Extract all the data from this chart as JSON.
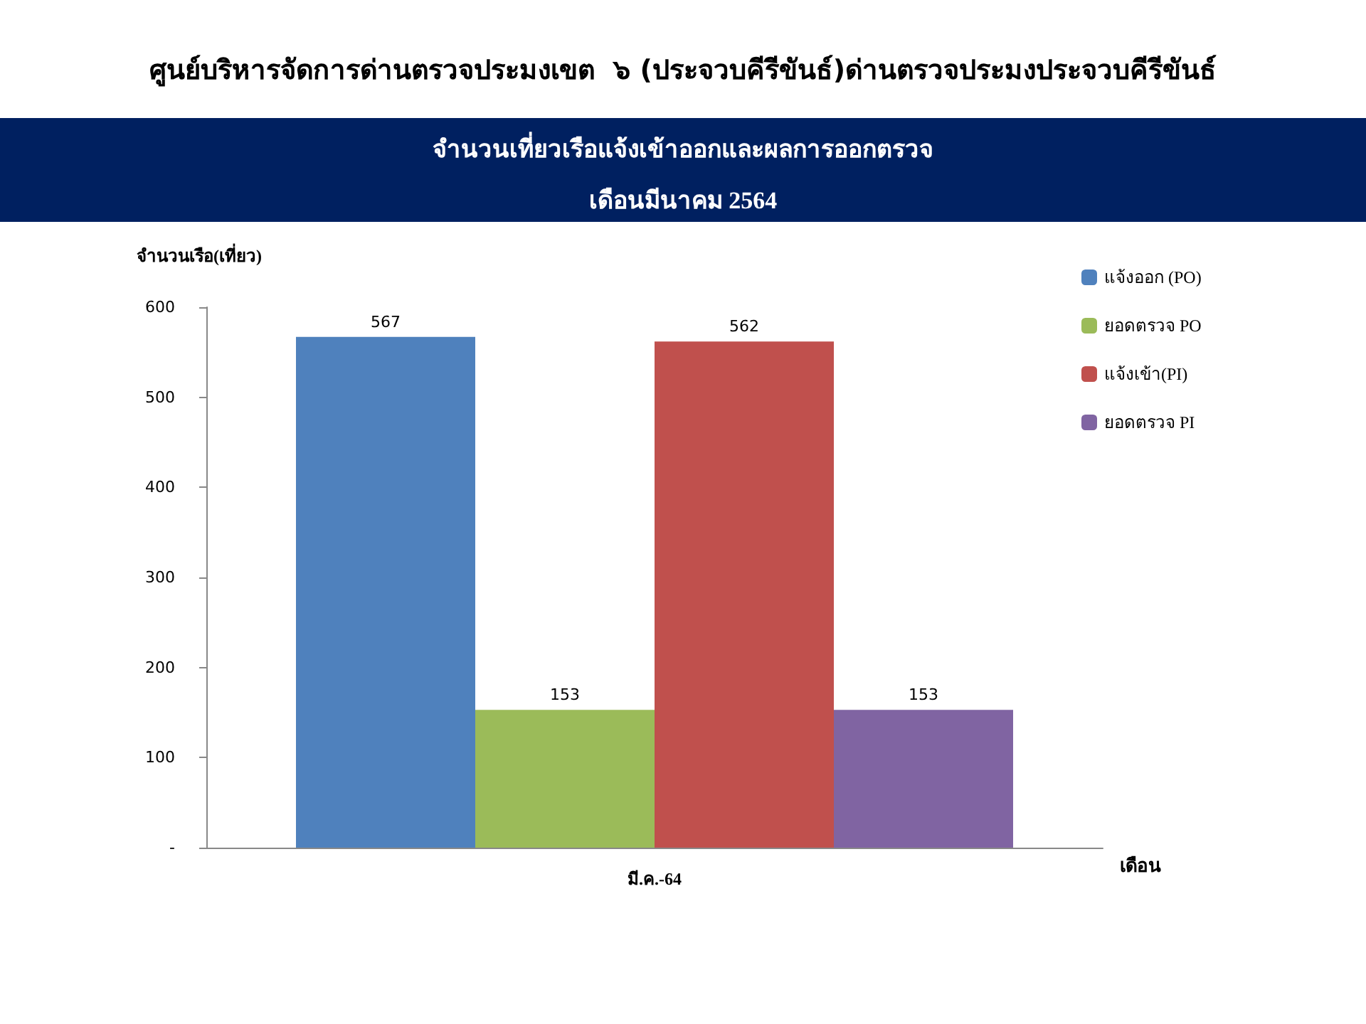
{
  "chart_data": {
    "type": "bar",
    "title": "ศูนย์บริหารจัดการด่านตรวจประมงเขต  ๖ (ประจวบคีรีขันธ์)ด่านตรวจประมงประจวบคีรีขันธ์",
    "subtitle": "จำนวนเที่ยวเรือแจ้งเข้าออกและผลการออกตรวจ\nเดือนมีนาคม 2564",
    "ylabel": "จำนวนเรือ(เที่ยว)",
    "xlabel": "เดือน",
    "categories": [
      "มี.ค.-64"
    ],
    "series": [
      {
        "name": "แจ้งออก (PO)",
        "color": "#4f81bd",
        "values": [
          567
        ]
      },
      {
        "name": "ยอดตรวจ PO",
        "color": "#9bbb59",
        "values": [
          153
        ]
      },
      {
        "name": "แจ้งเข้า(PI)",
        "color": "#c0504d",
        "values": [
          562
        ]
      },
      {
        "name": "ยอดตรวจ PI",
        "color": "#8064a2",
        "values": [
          153
        ]
      }
    ],
    "ylim": [
      0,
      600
    ],
    "yticks": [
      {
        "value": 0,
        "label": "-"
      },
      100,
      200,
      300,
      400,
      500,
      600
    ],
    "data_labels": true,
    "legend": "top right",
    "grid": false
  }
}
